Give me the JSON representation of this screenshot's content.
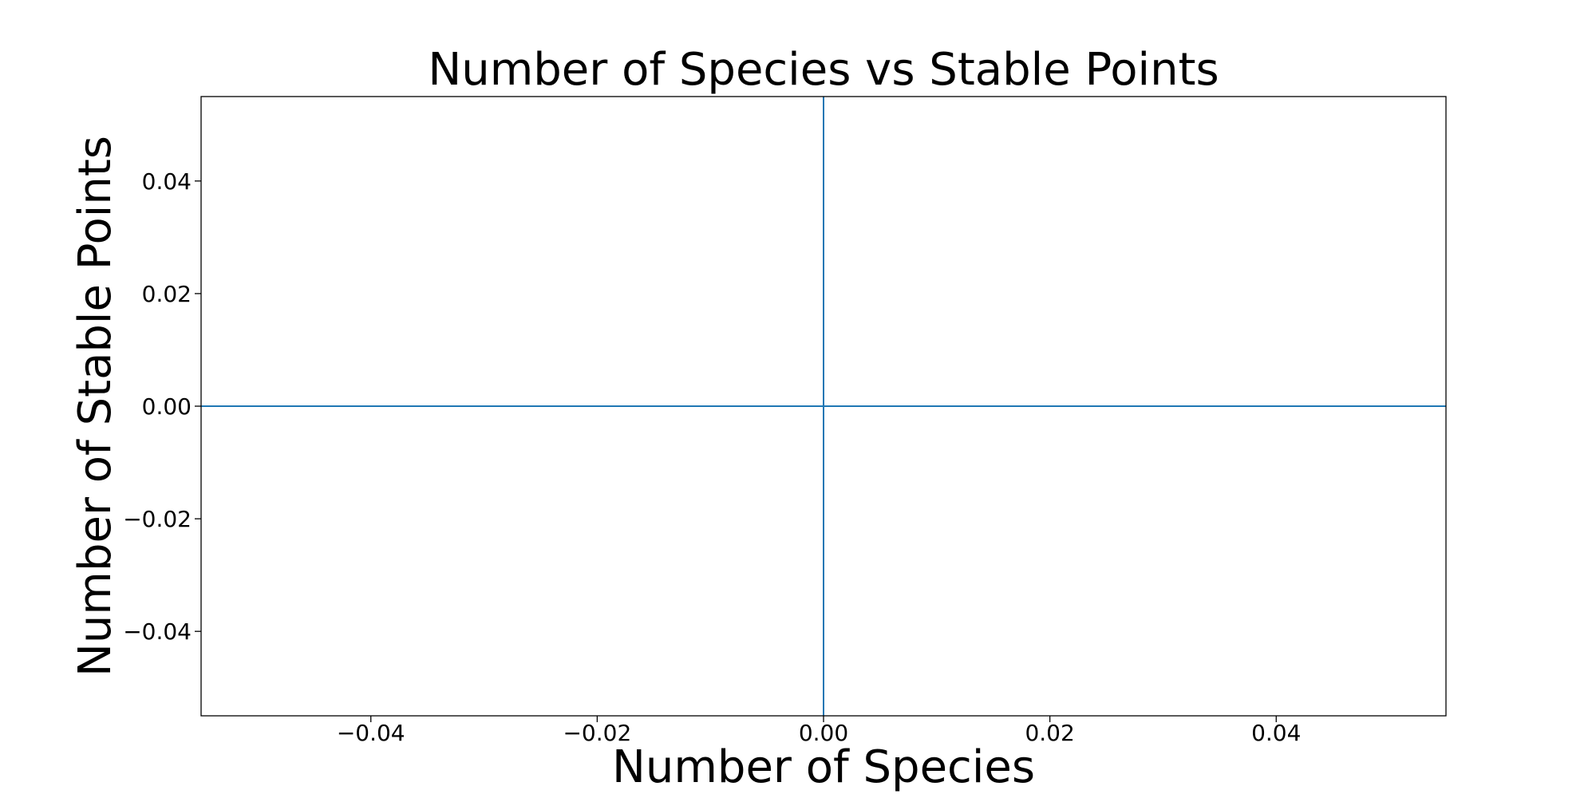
{
  "chart_data": {
    "type": "line",
    "title": "Number of Species vs Stable Points",
    "xlabel": "Number of Species",
    "ylabel": "Number of Stable Points",
    "xlim": [
      -0.055,
      0.055
    ],
    "ylim": [
      -0.055,
      0.055
    ],
    "x_ticks": [
      -0.04,
      -0.02,
      0.0,
      0.02,
      0.04
    ],
    "x_tick_labels": [
      "−0.04",
      "−0.02",
      "0.00",
      "0.02",
      "0.04"
    ],
    "y_ticks": [
      0.04,
      0.02,
      0.0,
      -0.02,
      -0.04
    ],
    "y_tick_labels": [
      "0.04",
      "0.02",
      "0.00",
      "−0.02",
      "−0.04"
    ],
    "grid": false,
    "series": [
      {
        "color": "#1f77b4",
        "x": [
          0.0
        ],
        "y": [
          0.0
        ]
      }
    ],
    "reference_lines": {
      "horizontal": {
        "y": 0.0,
        "color": "#1f77b4"
      },
      "vertical": {
        "x": 0.0,
        "color": "#1f77b4"
      }
    }
  }
}
